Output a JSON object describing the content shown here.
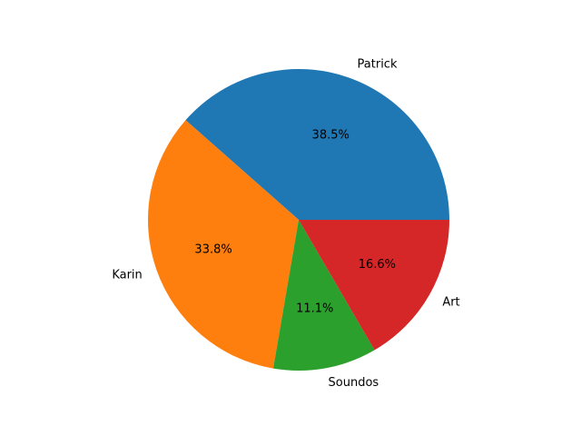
{
  "chart_data": {
    "type": "pie",
    "title": "",
    "start_angle_deg": 0,
    "direction": "counterclockwise",
    "slices": [
      {
        "label": "Patrick",
        "value": 38.5,
        "pct_label": "38.5%",
        "color": "#1f77b4"
      },
      {
        "label": "Karin",
        "value": 33.8,
        "pct_label": "33.8%",
        "color": "#ff7f0e"
      },
      {
        "label": "Soundos",
        "value": 11.1,
        "pct_label": "11.1%",
        "color": "#2ca02c"
      },
      {
        "label": "Art",
        "value": 16.6,
        "pct_label": "16.6%",
        "color": "#d62728"
      }
    ]
  }
}
